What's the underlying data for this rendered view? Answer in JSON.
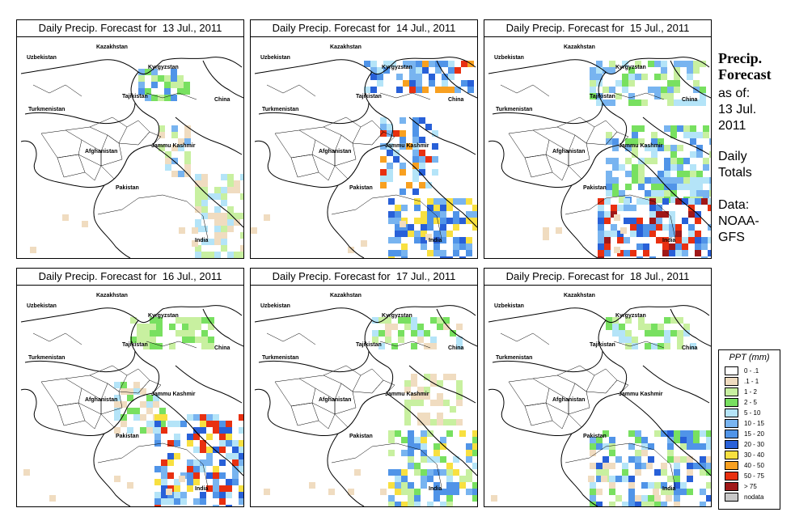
{
  "panels": [
    {
      "title": "Daily Precip. Forecast for  13 Jul., 2011"
    },
    {
      "title": "Daily Precip. Forecast for  14 Jul., 2011"
    },
    {
      "title": "Daily Precip. Forecast for  15 Jul., 2011"
    },
    {
      "title": "Daily Precip. Forecast for  16 Jul., 2011"
    },
    {
      "title": "Daily Precip. Forecast for  17 Jul., 2011"
    },
    {
      "title": "Daily Precip. Forecast for  18 Jul., 2011"
    }
  ],
  "map_labels": {
    "kazakhstan": "Kazakhstan",
    "uzbekistan": "Uzbekistan",
    "kyrgyzstan": "Kyrgyzstan",
    "tajikistan": "Tajikistan",
    "china": "China",
    "turkmenistan": "Turkmenistan",
    "jammu_kashmir": "Jammu Kashmir",
    "afghanistan": "Afghanistan",
    "pakistan": "Pakistan",
    "india": "India"
  },
  "side": {
    "title_line1": "Precip.",
    "title_line2": "Forecast",
    "asof_line1": "as of:",
    "asof_line2": "13 Jul.",
    "asof_line3": "2011",
    "totals_line1": "Daily",
    "totals_line2": "Totals",
    "data_line1": "Data:",
    "data_line2": "NOAA-",
    "data_line3": "GFS"
  },
  "legend": {
    "title": "PPT (mm)",
    "items": [
      {
        "label": "0 - .1",
        "color": "#ffffff"
      },
      {
        "label": ".1 - 1",
        "color": "#f0dcc0"
      },
      {
        "label": "1 - 2",
        "color": "#c8f0a0"
      },
      {
        "label": "2 - 5",
        "color": "#78e060"
      },
      {
        "label": "5 - 10",
        "color": "#b4e4f8"
      },
      {
        "label": "10 - 15",
        "color": "#78b4f0"
      },
      {
        "label": "15 - 20",
        "color": "#5094e8"
      },
      {
        "label": "20 - 30",
        "color": "#2860d8"
      },
      {
        "label": "30 - 40",
        "color": "#f8e040"
      },
      {
        "label": "40 - 50",
        "color": "#f8a020"
      },
      {
        "label": "50 - 75",
        "color": "#e83010"
      },
      {
        "label": "> 75",
        "color": "#a01818"
      },
      {
        "label": "nodata",
        "color": "#c8c8c8"
      }
    ]
  }
}
